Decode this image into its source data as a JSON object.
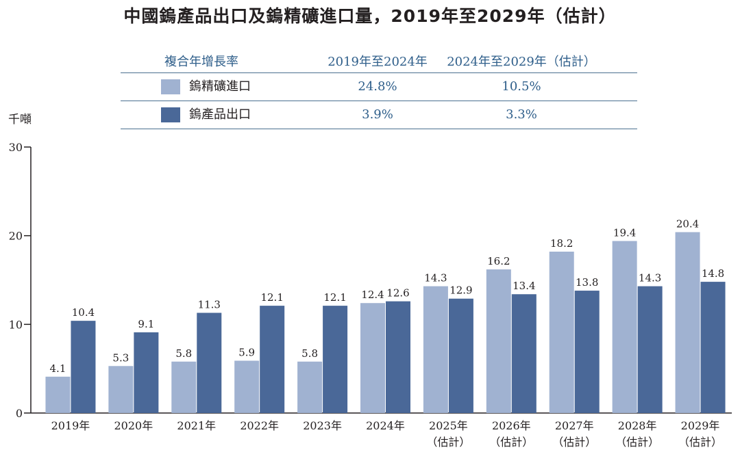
{
  "chart_data": {
    "type": "bar",
    "title": "中國鎢產品出口及鎢精礦進口量，2019年至2029年（估計）",
    "ylabel": "千噸",
    "xlabel": "",
    "ylim": [
      0,
      30
    ],
    "yticks": [
      "0",
      "10",
      "20",
      "30"
    ],
    "categories": [
      "2019年",
      "2020年",
      "2021年",
      "2022年",
      "2023年",
      "2024年",
      "2025年",
      "2026年",
      "2027年",
      "2028年",
      "2029年"
    ],
    "category_notes": [
      "",
      "",
      "",
      "",
      "",
      "",
      "（估計）",
      "（估計）",
      "（估計）",
      "（估計）",
      "（估計）"
    ],
    "series": [
      {
        "name": "鎢精礦進口",
        "color": "#a0b2d1",
        "values": [
          4.1,
          5.3,
          5.8,
          5.9,
          5.8,
          12.4,
          14.3,
          16.2,
          18.2,
          19.4,
          20.4
        ],
        "labels": [
          "4.1",
          "5.3",
          "5.8",
          "5.9",
          "5.8",
          "12.4",
          "14.3",
          "16.2",
          "18.2",
          "19.4",
          "20.4"
        ]
      },
      {
        "name": "鎢產品出口",
        "color": "#4a6898",
        "values": [
          10.4,
          9.1,
          11.3,
          12.1,
          12.1,
          12.6,
          12.9,
          13.4,
          13.8,
          14.3,
          14.8
        ],
        "labels": [
          "10.4",
          "9.1",
          "11.3",
          "12.1",
          "12.1",
          "12.6",
          "12.9",
          "13.4",
          "13.8",
          "14.3",
          "14.8"
        ]
      }
    ],
    "legend": "top",
    "grid": false
  },
  "cagr_table": {
    "header": {
      "label": "複合年增長率",
      "col1": "2019年至2024年",
      "col2": "2024年至2029年（估計）"
    },
    "rows": [
      {
        "name": "鎢精礦進口",
        "col1": "24.8%",
        "col2": "10.5%",
        "color": "#a0b2d1"
      },
      {
        "name": "鎢產品出口",
        "col1": "3.9%",
        "col2": "3.3%",
        "color": "#4a6898"
      }
    ]
  }
}
